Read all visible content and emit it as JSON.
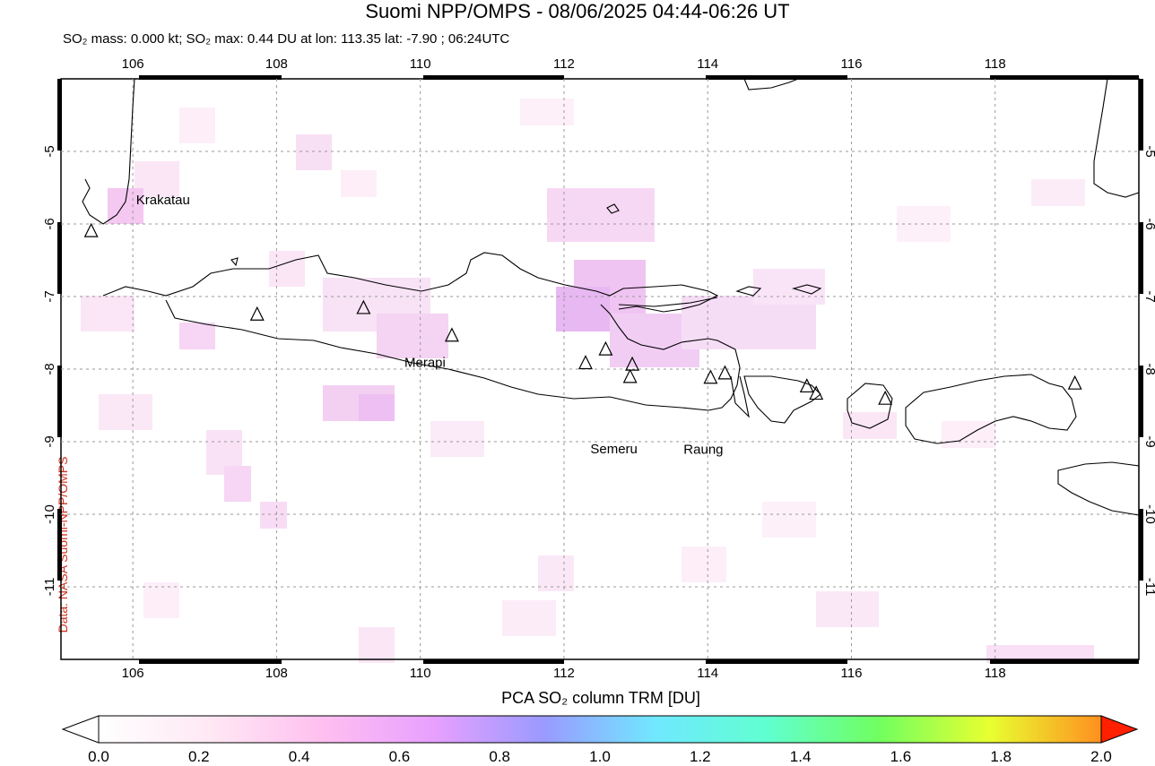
{
  "header": {
    "title": "Suomi NPP/OMPS - 08/06/2025 04:44-06:26 UT",
    "subtitle": "SO₂ mass: 0.000 kt; SO₂ max: 0.44 DU at lon: 113.35 lat: -7.90 ; 06:24UTC"
  },
  "credit": "Data: NASA Suomi-NPP/OMPS",
  "map": {
    "lon_range": [
      105,
      120
    ],
    "lat_range": [
      -12,
      -4
    ],
    "lon_ticks": [
      "106",
      "108",
      "110",
      "112",
      "114",
      "116",
      "118"
    ],
    "lat_ticks": [
      "-5",
      "-6",
      "-7",
      "-8",
      "-9",
      "-10",
      "-11"
    ],
    "gridlines": true,
    "volcano_labels": [
      {
        "name": "Krakatau",
        "lon": 106.42,
        "lat": -6.1
      },
      {
        "name": "Merapi",
        "lon": 110.44,
        "lat": -7.54
      },
      {
        "name": "Semeru",
        "lon": 112.92,
        "lat": -8.11
      },
      {
        "name": "Raung",
        "lon": 114.04,
        "lat": -8.12
      }
    ],
    "volcanoes": [
      {
        "lon": 105.42,
        "lat": -6.1
      },
      {
        "lon": 107.73,
        "lat": -7.25
      },
      {
        "lon": 109.21,
        "lat": -7.16
      },
      {
        "lon": 110.44,
        "lat": -7.54
      },
      {
        "lon": 112.3,
        "lat": -7.92
      },
      {
        "lon": 112.58,
        "lat": -7.73
      },
      {
        "lon": 112.95,
        "lat": -7.94
      },
      {
        "lon": 112.92,
        "lat": -8.11
      },
      {
        "lon": 114.04,
        "lat": -8.12
      },
      {
        "lon": 114.24,
        "lat": -8.06
      },
      {
        "lon": 115.38,
        "lat": -8.24
      },
      {
        "lon": 115.51,
        "lat": -8.34
      },
      {
        "lon": 116.47,
        "lat": -8.41
      },
      {
        "lon": 119.11,
        "lat": -8.2
      }
    ]
  },
  "colorbar": {
    "title": "PCA SO₂ column TRM [DU]",
    "ticks": [
      "0.0",
      "0.2",
      "0.4",
      "0.6",
      "0.8",
      "1.0",
      "1.2",
      "1.4",
      "1.6",
      "1.8",
      "2.0"
    ],
    "colors": [
      "#ffffff",
      "#ffe8f4",
      "#ffc0f0",
      "#e8a0ff",
      "#9a9aff",
      "#70e8ff",
      "#60ffd0",
      "#70ff60",
      "#e8ff30",
      "#ff9020",
      "#ff2000"
    ]
  }
}
